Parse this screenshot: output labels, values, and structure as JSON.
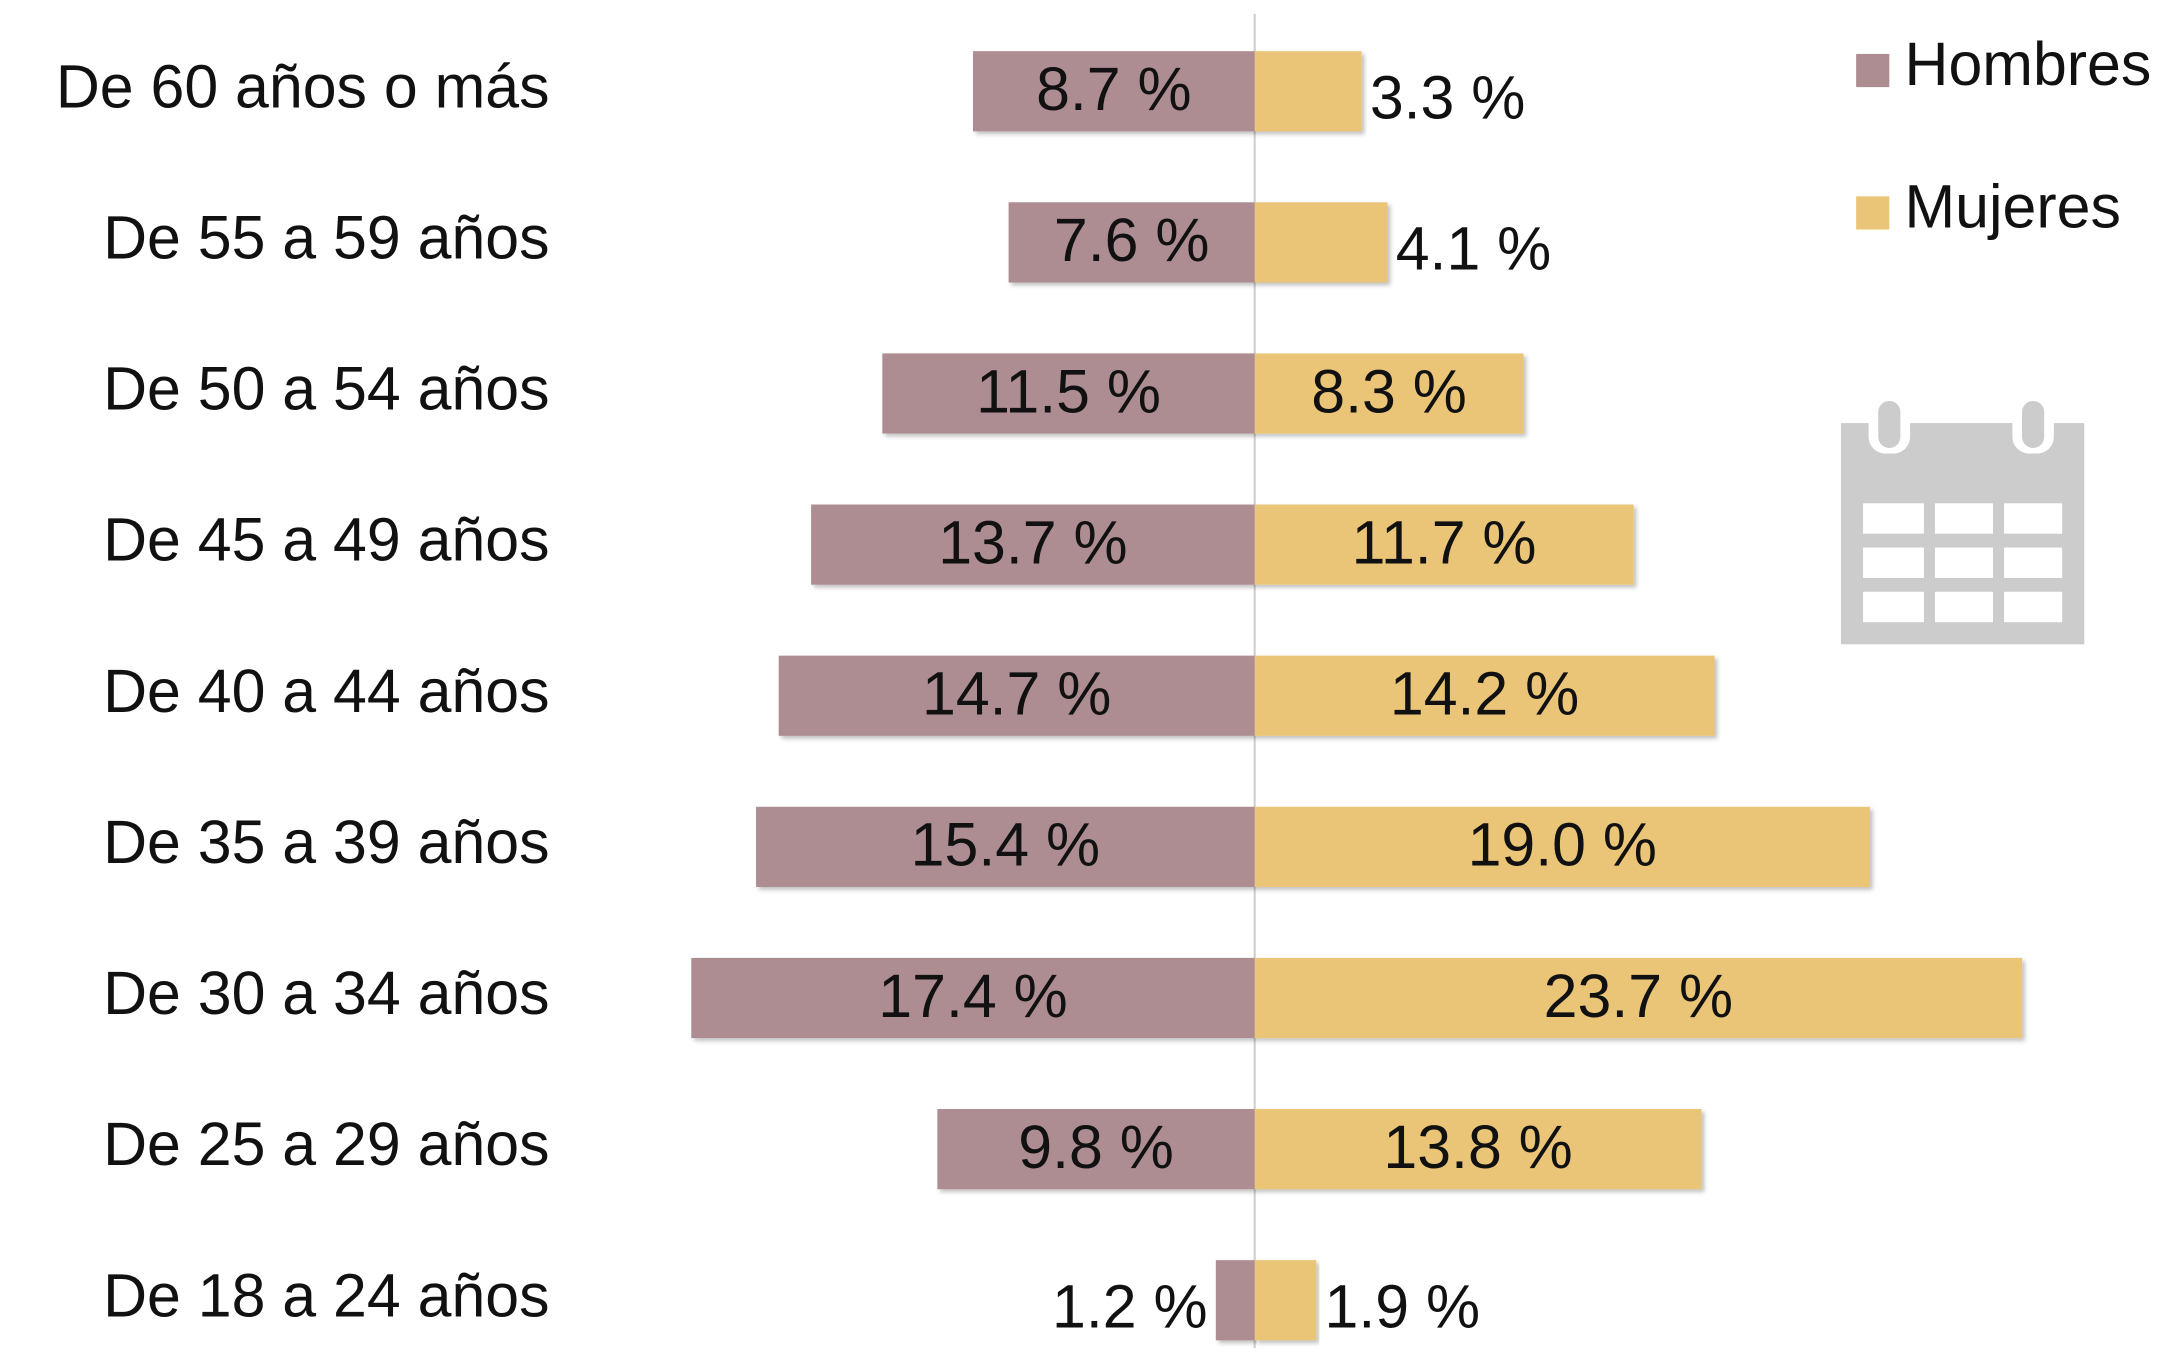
{
  "chart_data": {
    "type": "pyramid",
    "categories": [
      "De 60 años o más",
      "De 55 a 59 años",
      "De 50 a 54 años",
      "De 45 a 49 años",
      "De 40 a 44 años",
      "De 35 a 39 años",
      "De 30 a 34 años",
      "De 25 a 29 años",
      "De 18 a 24 años"
    ],
    "series": [
      {
        "name": "Hombres",
        "color": "#ad8d92",
        "values": [
          8.7,
          7.6,
          11.5,
          13.7,
          14.7,
          15.4,
          17.4,
          9.8,
          1.2
        ],
        "value_labels": [
          "8.7 %",
          "7.6 %",
          "11.5 %",
          "13.7 %",
          "14.7 %",
          "15.4 %",
          "17.4 %",
          "9.8 %",
          "1.2 %"
        ]
      },
      {
        "name": "Mujeres",
        "color": "#ebc577",
        "values": [
          3.3,
          4.1,
          8.3,
          11.7,
          14.2,
          19.0,
          23.7,
          13.8,
          1.9
        ],
        "value_labels": [
          "3.3 %",
          "4.1 %",
          "8.3 %",
          "11.7 %",
          "14.2 %",
          "19.0 %",
          "23.7 %",
          "13.8 %",
          "1.9 %"
        ]
      }
    ]
  }
}
